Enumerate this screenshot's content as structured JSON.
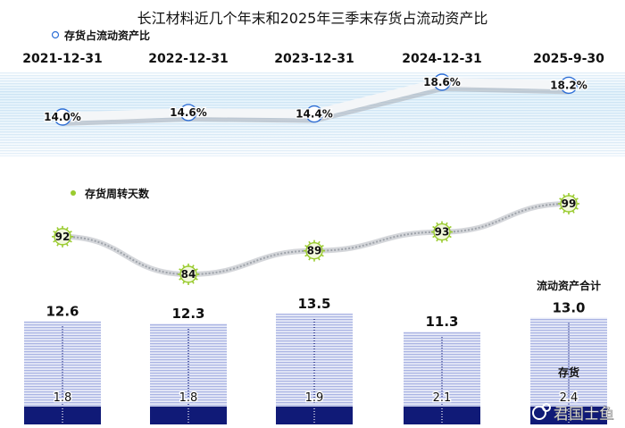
{
  "title": "长江材料近几个年末和2025年三季末存货占流动资产比",
  "watermark": "君国士鱼",
  "colors": {
    "accent": "#2e6fd6",
    "band": "#d7ecf8",
    "bar_light": "#c9d1ee",
    "bar_dark": "#101a77",
    "marker_green": "#9acb2f",
    "text": "#111111"
  },
  "chart_data": [
    {
      "type": "line",
      "legend": "存货占流动资产比",
      "categories": [
        "2021-12-31",
        "2022-12-31",
        "2023-12-31",
        "2024-12-31",
        "2025-9-30"
      ],
      "values": [
        14.0,
        14.6,
        14.4,
        18.6,
        18.2
      ],
      "labels": [
        "14.0%",
        "14.6%",
        "14.4%",
        "18.6%",
        "18.2%"
      ]
    },
    {
      "type": "line",
      "legend": "存货周转天数",
      "categories": [
        "2021-12-31",
        "2022-12-31",
        "2023-12-31",
        "2024-12-31",
        "2025-9-30"
      ],
      "values": [
        92,
        84,
        89,
        93,
        99
      ],
      "labels": [
        "92",
        "84",
        "89",
        "93",
        "99"
      ]
    },
    {
      "type": "bar",
      "categories": [
        "2021-12-31",
        "2022-12-31",
        "2023-12-31",
        "2024-12-31",
        "2025-9-30"
      ],
      "series": [
        {
          "name": "流动资产合计",
          "values": [
            12.6,
            12.3,
            13.5,
            11.3,
            13.0
          ],
          "labels": [
            "12.6",
            "12.3",
            "13.5",
            "11.3",
            "13.0"
          ]
        },
        {
          "name": "存货",
          "values": [
            1.8,
            1.8,
            1.9,
            2.1,
            2.4
          ],
          "labels": [
            "1.8",
            "1.8",
            "1.9",
            "2.1",
            "2.4"
          ]
        }
      ]
    }
  ]
}
